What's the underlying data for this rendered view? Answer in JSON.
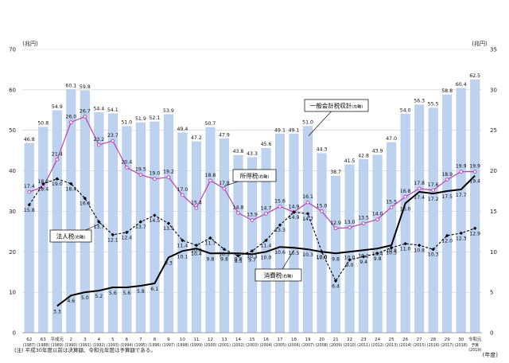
{
  "chart_data": {
    "type": "bar",
    "title": "",
    "ylabel_left": "(兆円)",
    "ylabel_right": "(兆円)",
    "xlabel": "(年度)",
    "ylim_left": [
      0,
      70
    ],
    "ylim_right": [
      0,
      35
    ],
    "yticks_left": [
      "0",
      "10",
      "20",
      "30",
      "40",
      "50",
      "60",
      "70"
    ],
    "yticks_right": [
      "0",
      "5",
      "10",
      "15",
      "20",
      "25",
      "30",
      "35"
    ],
    "grid": true,
    "categories": [
      {
        "top": "62",
        "bottom": "(1987)"
      },
      {
        "top": "63",
        "bottom": "(1988)"
      },
      {
        "top": "平成元",
        "bottom": "(1989)"
      },
      {
        "top": "2",
        "bottom": "(1990)"
      },
      {
        "top": "3",
        "bottom": "(1991)"
      },
      {
        "top": "4",
        "bottom": "(1992)"
      },
      {
        "top": "5",
        "bottom": "(1993)"
      },
      {
        "top": "6",
        "bottom": "(1994)"
      },
      {
        "top": "7",
        "bottom": "(1995)"
      },
      {
        "top": "8",
        "bottom": "(1996)"
      },
      {
        "top": "9",
        "bottom": "(1997)"
      },
      {
        "top": "10",
        "bottom": "(1998)"
      },
      {
        "top": "11",
        "bottom": "(1999)"
      },
      {
        "top": "12",
        "bottom": "(2000)"
      },
      {
        "top": "13",
        "bottom": "(2001)"
      },
      {
        "top": "14",
        "bottom": "(2002)"
      },
      {
        "top": "15",
        "bottom": "(2003)"
      },
      {
        "top": "16",
        "bottom": "(2004)"
      },
      {
        "top": "17",
        "bottom": "(2005)"
      },
      {
        "top": "18",
        "bottom": "(2006)"
      },
      {
        "top": "19",
        "bottom": "(2007)"
      },
      {
        "top": "20",
        "bottom": "(2008)"
      },
      {
        "top": "21",
        "bottom": "(2009)"
      },
      {
        "top": "22",
        "bottom": "(2010)"
      },
      {
        "top": "23",
        "bottom": "(2011)"
      },
      {
        "top": "24",
        "bottom": "(2012)"
      },
      {
        "top": "25",
        "bottom": "(2013)"
      },
      {
        "top": "26",
        "bottom": "(2014)"
      },
      {
        "top": "27",
        "bottom": "(2015)"
      },
      {
        "top": "28",
        "bottom": "(2016)"
      },
      {
        "top": "29",
        "bottom": "(2017)"
      },
      {
        "top": "30",
        "bottom": "(2018)"
      },
      {
        "top": "令和元",
        "bottom": "予算",
        "extra": "(2019)"
      }
    ],
    "series": [
      {
        "name": "一般会計税収計",
        "axis_note": "(左軸)",
        "axis": "left",
        "kind": "bar",
        "color": "#bcd2ee",
        "values": [
          46.8,
          50.8,
          54.9,
          60.1,
          59.8,
          54.4,
          54.1,
          51.0,
          51.9,
          52.1,
          53.9,
          49.4,
          47.2,
          50.7,
          47.9,
          43.8,
          43.3,
          45.6,
          49.1,
          49.1,
          51.0,
          44.3,
          38.7,
          41.5,
          42.8,
          43.9,
          47.0,
          54.0,
          56.3,
          55.5,
          58.8,
          60.4,
          62.5
        ]
      },
      {
        "name": "所得税",
        "axis_note": "(右軸)",
        "axis": "right",
        "kind": "line",
        "color": "#c03fb0",
        "values": [
          17.4,
          18.0,
          21.4,
          26.0,
          26.7,
          23.2,
          23.7,
          20.4,
          19.5,
          19.0,
          19.2,
          17.0,
          15.4,
          18.8,
          17.8,
          14.8,
          13.9,
          14.7,
          15.6,
          14.9,
          16.1,
          15.0,
          12.9,
          13.0,
          13.5,
          14.0,
          15.5,
          16.8,
          17.8,
          17.6,
          18.9,
          19.9,
          19.9
        ]
      },
      {
        "name": "法人税",
        "axis_note": "(右軸)",
        "axis": "right",
        "kind": "line",
        "color": "#000000",
        "dashed": true,
        "values": [
          15.8,
          18.4,
          19.0,
          18.4,
          16.6,
          13.7,
          12.1,
          12.4,
          13.7,
          14.5,
          13.5,
          11.4,
          10.8,
          11.7,
          10.3,
          9.5,
          10.1,
          11.4,
          13.3,
          14.9,
          14.7,
          10.0,
          6.4,
          9.0,
          9.4,
          9.8,
          10.5,
          11.0,
          10.8,
          10.3,
          12.0,
          12.3,
          12.9
        ]
      },
      {
        "name": "消費税",
        "axis_note": "(右軸)",
        "axis": "right",
        "kind": "line",
        "color": "#000000",
        "dashed": false,
        "values": [
          null,
          null,
          3.3,
          4.6,
          5.0,
          5.2,
          5.6,
          5.6,
          5.8,
          6.1,
          9.3,
          10.1,
          10.4,
          9.8,
          9.8,
          9.8,
          9.7,
          10.0,
          10.6,
          10.5,
          10.3,
          10.0,
          9.8,
          10.0,
          10.2,
          10.4,
          10.8,
          16.0,
          17.4,
          17.2,
          17.5,
          17.7,
          19.4
        ]
      }
    ],
    "legend_labels": {
      "total": "一般会計税収計",
      "total_note": "(左軸)",
      "income": "所得税",
      "income_note": "(右軸)",
      "corporate": "法人税",
      "corporate_note": "(右軸)",
      "consumption": "消費税",
      "consumption_note": "(右軸)"
    }
  },
  "footnote": "(注) 平成30年度以前は決算額、令和元年度は予算額である。"
}
